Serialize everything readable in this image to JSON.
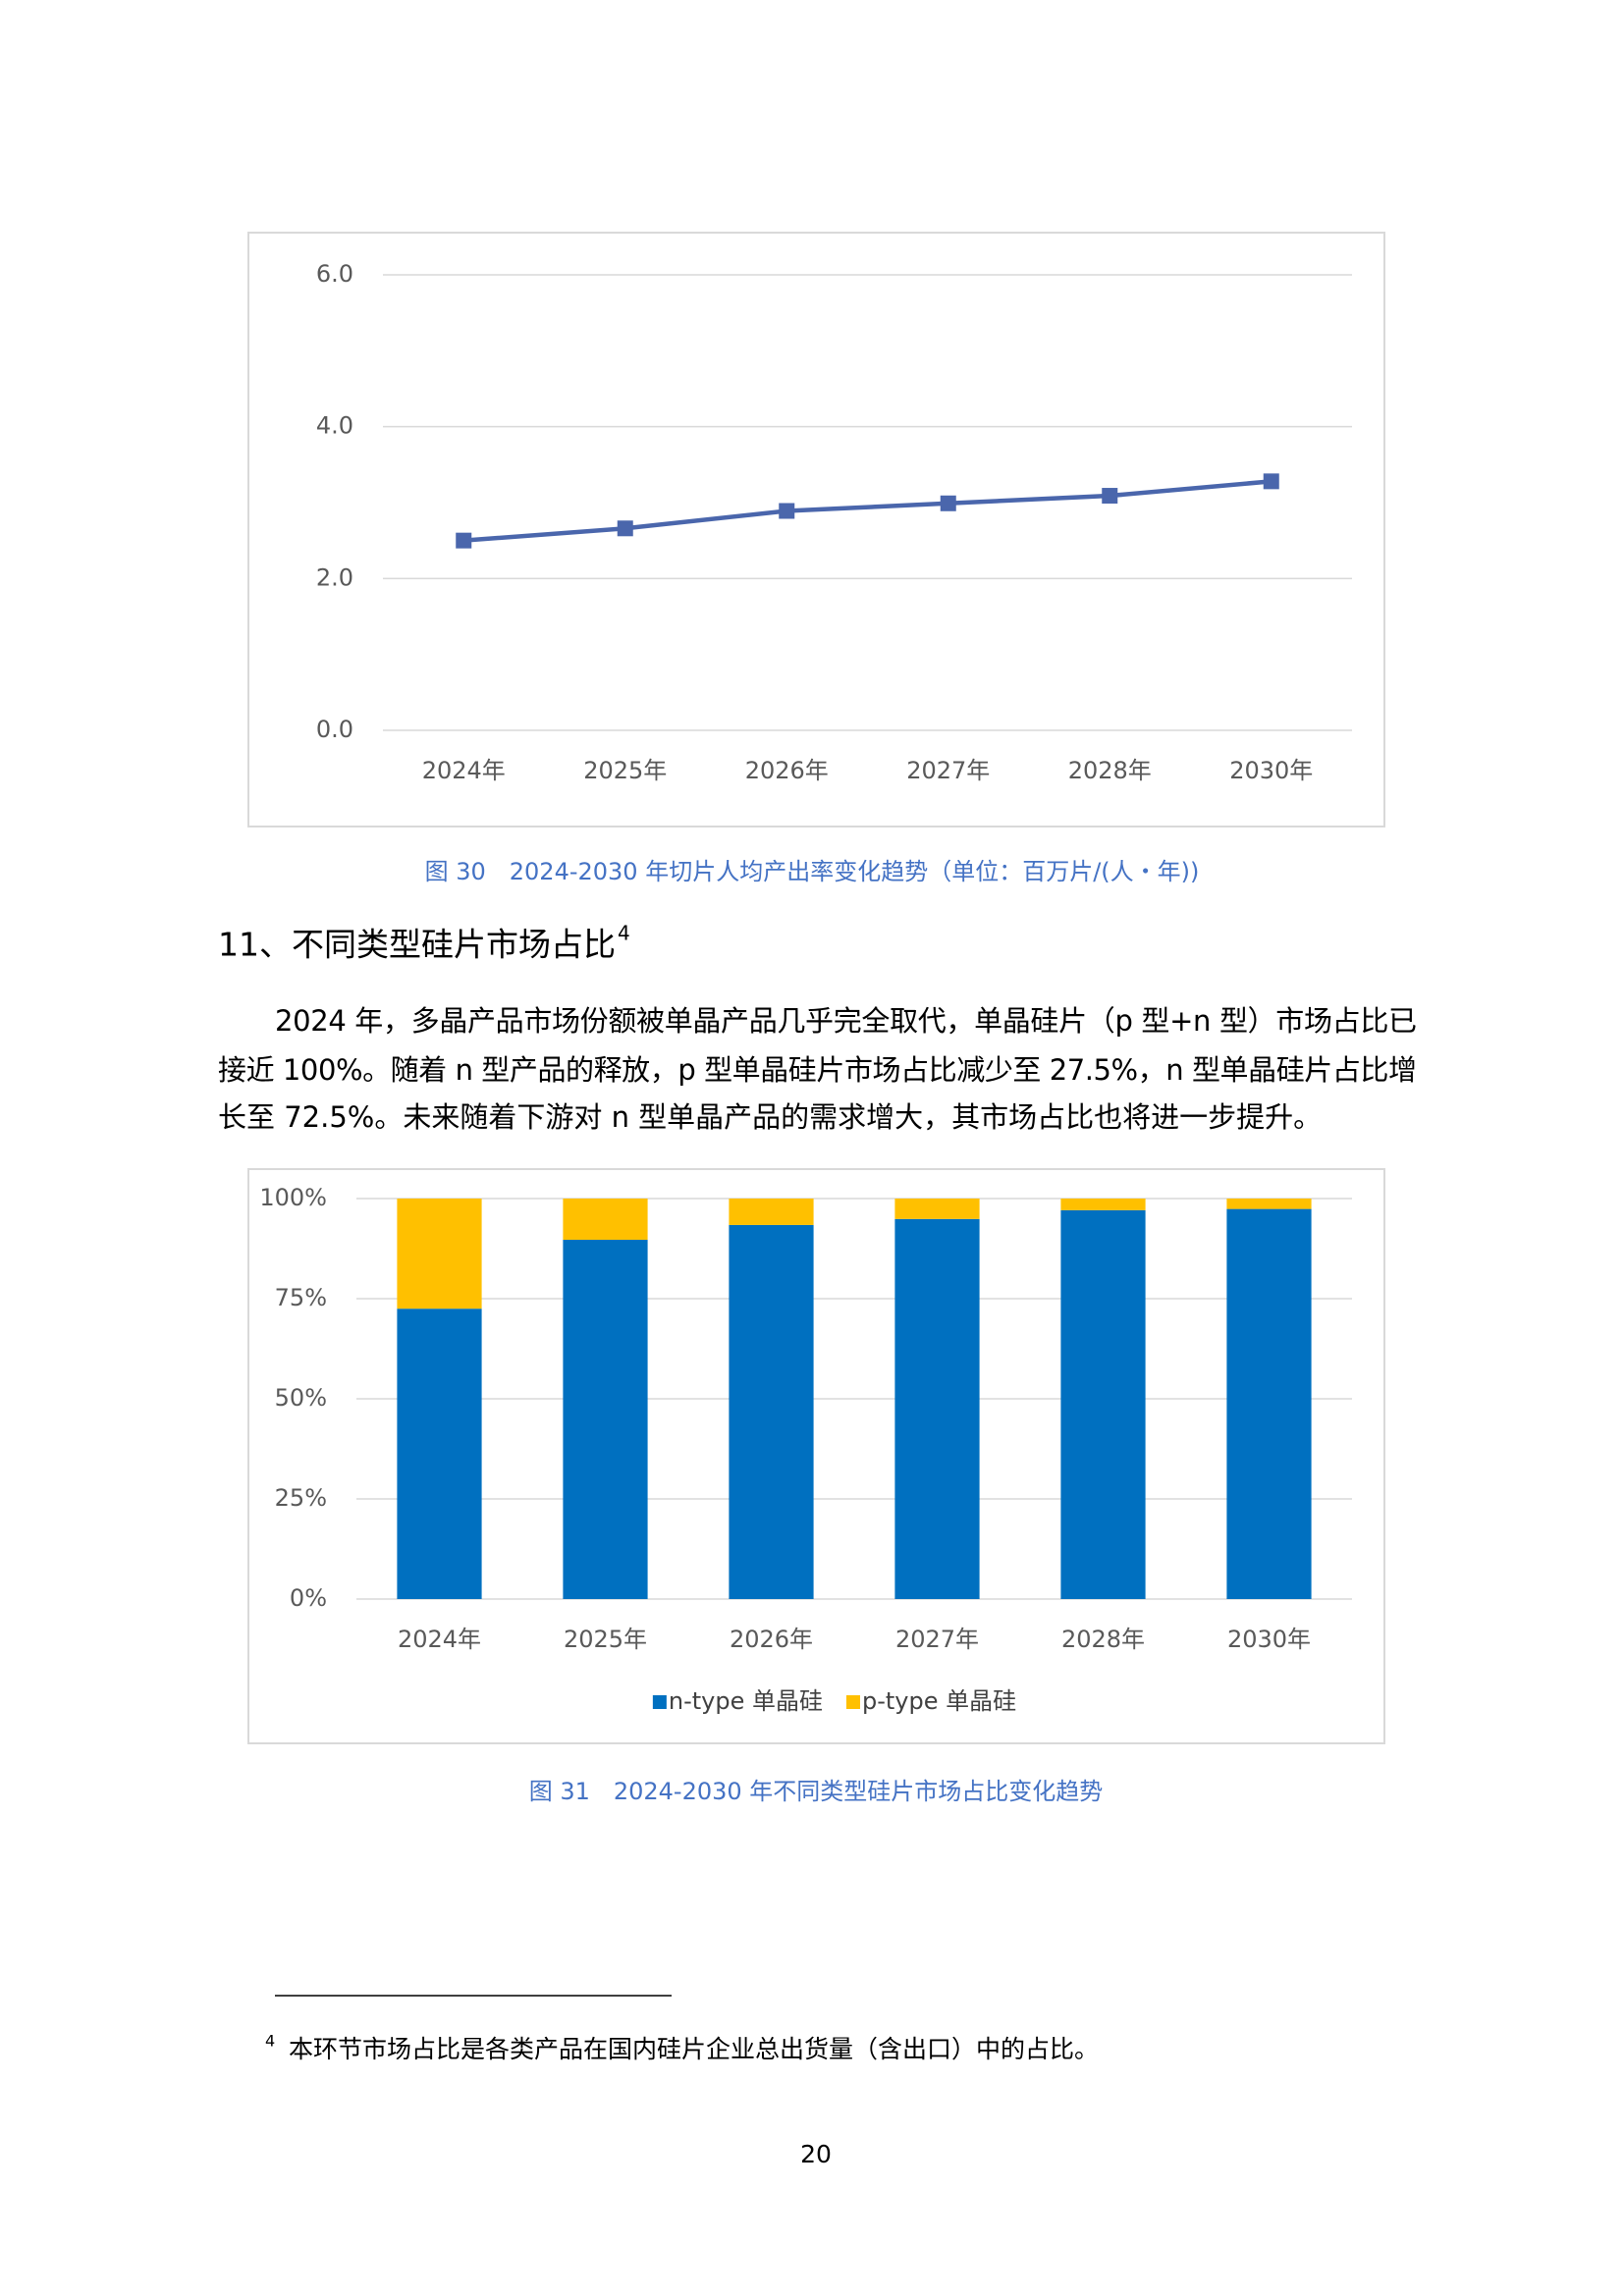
{
  "chart_data": [
    {
      "type": "line",
      "categories": [
        "2024年",
        "2025年",
        "2026年",
        "2027年",
        "2028年",
        "2030年"
      ],
      "values": [
        2.5,
        2.66,
        2.89,
        2.99,
        3.09,
        3.28
      ],
      "color": "#4a66ac",
      "ylim": [
        0,
        6
      ],
      "yticks": [
        {
          "value": 0,
          "label": "0.0"
        },
        {
          "value": 2,
          "label": "2.0"
        },
        {
          "value": 4,
          "label": "4.0"
        },
        {
          "value": 6,
          "label": "6.0"
        }
      ],
      "grid": true
    },
    {
      "type": "bar",
      "stacked": true,
      "categories": [
        "2024年",
        "2025年",
        "2026年",
        "2027年",
        "2028年",
        "2030年"
      ],
      "series": [
        {
          "name": "n-type 单晶硅",
          "color": "#0070c0",
          "values": [
            72.5,
            89.7,
            93.4,
            94.9,
            97.1,
            97.4
          ]
        },
        {
          "name": "p-type 单晶硅",
          "color": "#ffc000",
          "values": [
            27.5,
            10.3,
            6.6,
            5.1,
            2.9,
            2.6
          ]
        }
      ],
      "ylim": [
        0,
        100
      ],
      "yticks": [
        {
          "value": 0,
          "label": "0%"
        },
        {
          "value": 25,
          "label": "25%"
        },
        {
          "value": 50,
          "label": "50%"
        },
        {
          "value": 75,
          "label": "75%"
        },
        {
          "value": 100,
          "label": "100%"
        }
      ],
      "grid": true,
      "legend": "bottom"
    }
  ],
  "captions": [
    "图 30　2024-2030 年切片人均产出率变化趋势（单位：百万片/(人・年))",
    "图 31　2024-2030 年不同类型硅片市场占比变化趋势"
  ],
  "heading": {
    "text": "11、不同类型硅片市场占比",
    "footnote_ref": "4"
  },
  "paragraph": {
    "lines": [
      "2024 年，多晶产品市场份额被单晶产品几乎完全取代，单晶硅片（p 型+n 型）市场占比已",
      "接近 100%。随着 n 型产品的释放，p 型单晶硅片市场占比减少至 27.5%，n 型单晶硅片占比增",
      "长至 72.5%。未来随着下游对 n 型单晶产品的需求增大，其市场占比也将进一步提升。"
    ]
  },
  "footnote": {
    "mark": "4",
    "text": "本环节市场占比是各类产品在国内硅片企业总出货量（含出口）中的占比。"
  },
  "page_number": "20"
}
